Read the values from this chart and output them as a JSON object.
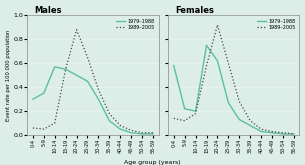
{
  "age_labels": [
    "0-4",
    "5-9",
    "10-14",
    "15-19",
    "20-24",
    "25-29",
    "30-34",
    "35-39",
    "40-44",
    "45-49",
    "50-54",
    "55-59"
  ],
  "males_1979_1988": [
    0.3,
    0.35,
    0.57,
    0.55,
    0.5,
    0.45,
    0.3,
    0.12,
    0.05,
    0.02,
    0.01,
    0.01
  ],
  "males_1989_2005": [
    0.06,
    0.05,
    0.1,
    0.55,
    0.88,
    0.65,
    0.38,
    0.18,
    0.08,
    0.04,
    0.02,
    0.02
  ],
  "females_1979_1988": [
    0.58,
    0.22,
    0.2,
    0.75,
    0.62,
    0.27,
    0.13,
    0.08,
    0.03,
    0.02,
    0.01,
    0.01
  ],
  "females_1989_2005": [
    0.14,
    0.12,
    0.18,
    0.58,
    0.92,
    0.6,
    0.28,
    0.12,
    0.05,
    0.03,
    0.02,
    0.01
  ],
  "line_color_solid": "#5bbfa0",
  "line_color_dotted": "#444444",
  "background_color": "#ddeee8",
  "ylabel": "Event rate per 100 000 population",
  "xlabel": "Age group (years)",
  "ylim": [
    0,
    1.0
  ],
  "yticks": [
    0,
    0.2,
    0.4,
    0.6,
    0.8,
    1.0
  ],
  "title_males": "Males",
  "title_females": "Females",
  "legend_1": "1979–1988",
  "legend_2": "1989–2005"
}
